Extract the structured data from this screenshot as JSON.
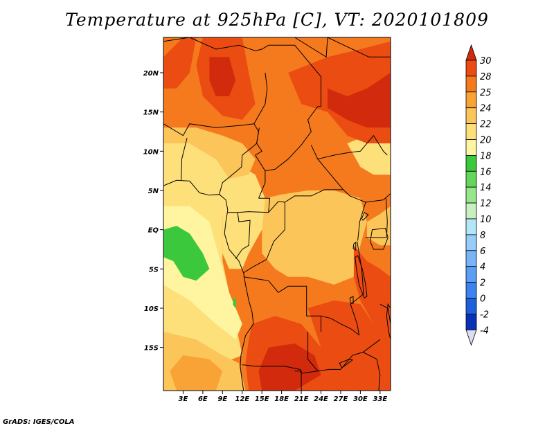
{
  "title": "Temperature at 925hPa [C], VT: 2020101809",
  "credit": "GrADS: IGES/COLA",
  "map": {
    "lon_range": [
      0,
      34.6
    ],
    "lat_range": [
      -20.5,
      24.5
    ],
    "lon_ticks": [
      "3E",
      "6E",
      "9E",
      "12E",
      "15E",
      "18E",
      "21E",
      "24E",
      "27E",
      "30E",
      "33E"
    ],
    "lon_tick_values": [
      3,
      6,
      9,
      12,
      15,
      18,
      21,
      24,
      27,
      30,
      33
    ],
    "lat_ticks": [
      "20N",
      "15N",
      "10N",
      "5N",
      "EQ",
      "5S",
      "10S",
      "15S"
    ],
    "lat_tick_values": [
      20,
      15,
      10,
      5,
      0,
      -5,
      -10,
      -15
    ]
  },
  "colorbar": {
    "levels": [
      "-4",
      "-2",
      "0",
      "2",
      "4",
      "6",
      "8",
      "10",
      "12",
      "14",
      "16",
      "18",
      "20",
      "22",
      "24",
      "25",
      "28",
      "30"
    ],
    "colors": [
      "#140a78",
      "#0a32b4",
      "#1e5fdc",
      "#3c82f0",
      "#5a9ef5",
      "#78b4f8",
      "#96cdfa",
      "#b4e6fa",
      "#c8f0c0",
      "#96e68c",
      "#64d75a",
      "#3cc83c",
      "#fff5a0",
      "#fde07a",
      "#fbc55a",
      "#f9a236",
      "#f57a1e",
      "#eb4c12",
      "#d22a0c"
    ]
  },
  "field_colors": {
    "t18_20": "#fff5a0",
    "t20_22": "#fde07a",
    "t22_24": "#fbc55a",
    "t24_25": "#f9a236",
    "t25_28": "#f57a1e",
    "t28_30": "#eb4c12",
    "t30_plus": "#d22a0c",
    "t16_18": "#3cc83c"
  }
}
